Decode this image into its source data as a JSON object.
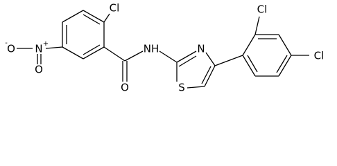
{
  "atoms": {
    "cl_top": "Cl",
    "o_minus": "O",
    "minus": "-",
    "n_plus": "N",
    "plus": "+",
    "o_nitro": "O",
    "o_carbonyl": "O",
    "nh": "NH",
    "n_thiazole": "N",
    "s_thiazole": "S",
    "cl_ortho": "Cl",
    "cl_para": "Cl"
  }
}
